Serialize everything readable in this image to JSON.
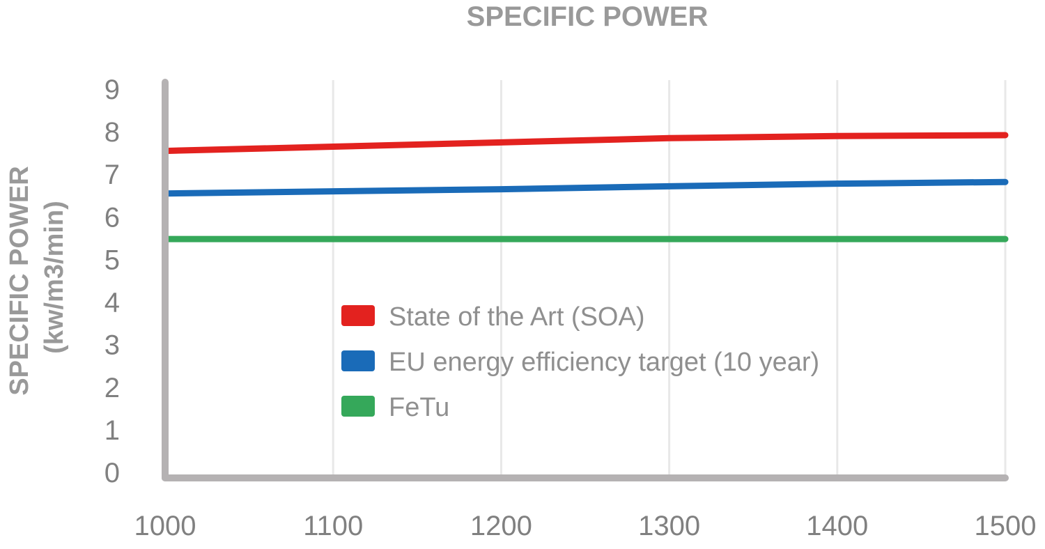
{
  "chart_data": {
    "type": "line",
    "title": "SPECIFIC POWER",
    "xlabel": "",
    "ylabel": "SPECIFIC POWER",
    "ylabel_unit": "(kw/m3/min)",
    "x": [
      1000,
      1100,
      1200,
      1300,
      1400,
      1500
    ],
    "x_ticks": [
      "1000",
      "1100",
      "1200",
      "1300",
      "1400",
      "1500"
    ],
    "y_ticks": [
      "0",
      "1",
      "2",
      "3",
      "4",
      "5",
      "6",
      "7",
      "8",
      "9"
    ],
    "xlim": [
      1000,
      1500
    ],
    "ylim": [
      0,
      9
    ],
    "grid": "vertical",
    "legend_position": "center",
    "series": [
      {
        "name": "State of the Art (SOA)",
        "color": "#e3221f",
        "values": [
          7.55,
          7.65,
          7.75,
          7.85,
          7.9,
          7.92
        ]
      },
      {
        "name": "EU energy efficiency target (10 year)",
        "color": "#1a6bb8",
        "values": [
          6.55,
          6.6,
          6.65,
          6.72,
          6.78,
          6.82
        ]
      },
      {
        "name": "FeTu",
        "color": "#35a85a",
        "values": [
          5.48,
          5.48,
          5.48,
          5.48,
          5.48,
          5.48
        ]
      }
    ]
  }
}
